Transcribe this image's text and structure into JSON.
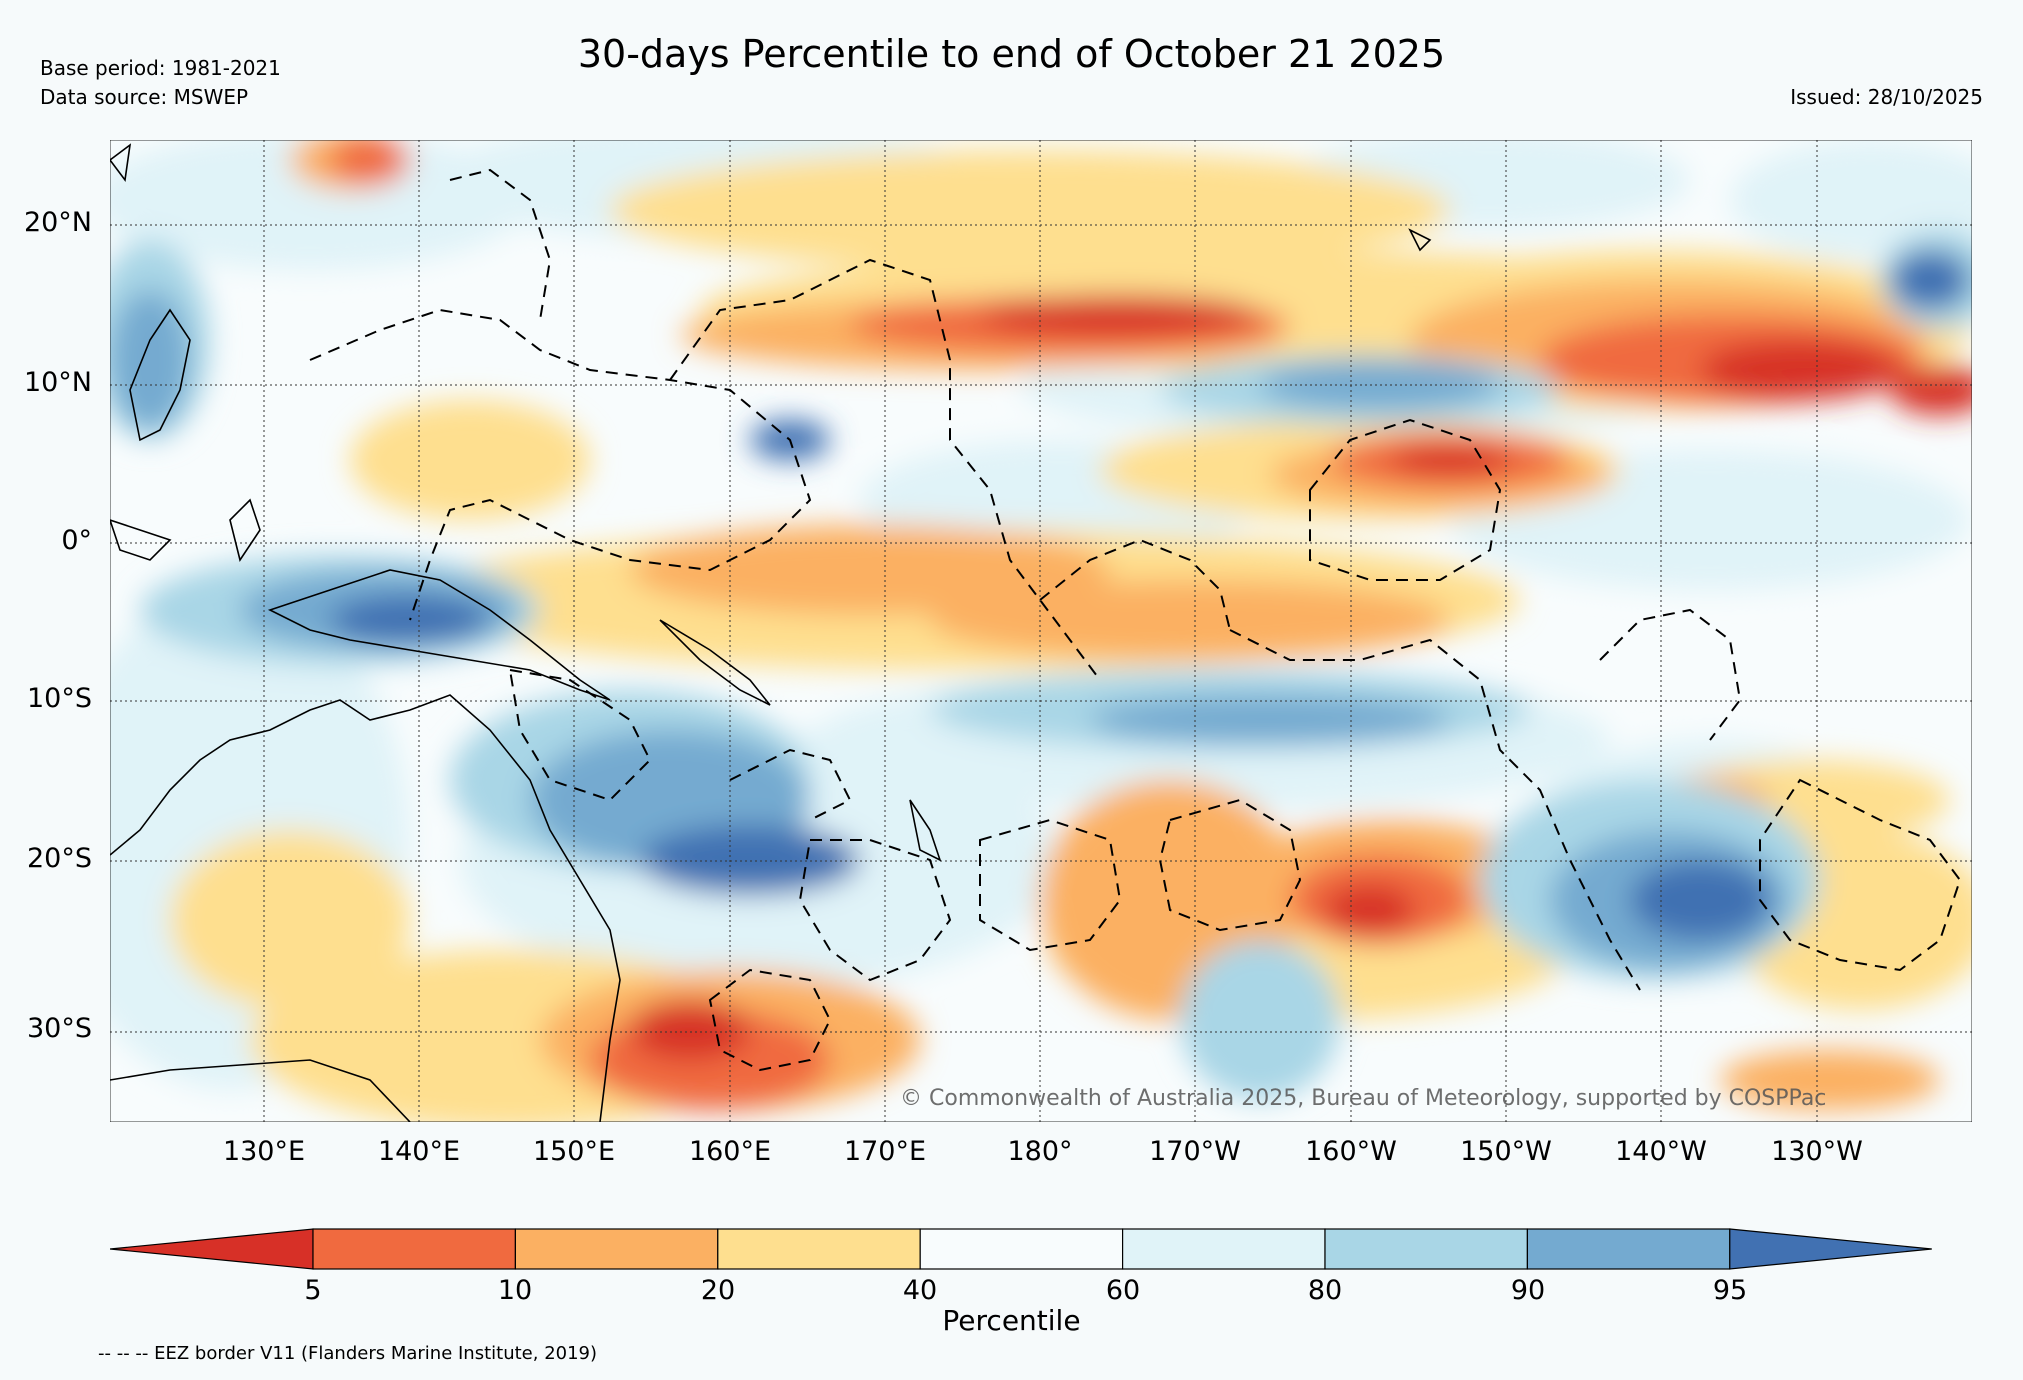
{
  "title": "30-days Percentile to end of October 21 2025",
  "base_period": "Base period: 1981-2021",
  "data_source": "Data source: MSWEP",
  "issued": "Issued: 28/10/2025",
  "copyright": "© Commonwealth of Australia 2025, Bureau of Meteorology, supported by COSPPac",
  "lat_labels": [
    "20°N",
    "10°N",
    "0°",
    "10°S",
    "20°S",
    "30°S"
  ],
  "lon_labels": [
    "130°E",
    "140°E",
    "150°E",
    "160°E",
    "170°E",
    "180°",
    "170°W",
    "160°W",
    "150°W",
    "140°W",
    "130°W"
  ],
  "colorbar": {
    "label": "Percentile",
    "ticks": [
      "5",
      "10",
      "20",
      "40",
      "60",
      "80",
      "90",
      "95"
    ],
    "colors": [
      "#d73027",
      "#f06a3f",
      "#fbb062",
      "#fedf8f",
      "#f8fcfd",
      "#e0f3f8",
      "#a9d6e6",
      "#74aad0",
      "#4171b2"
    ]
  },
  "footer": "-- -- -- EEZ border V11 (Flanders Marine Institute, 2019)"
}
